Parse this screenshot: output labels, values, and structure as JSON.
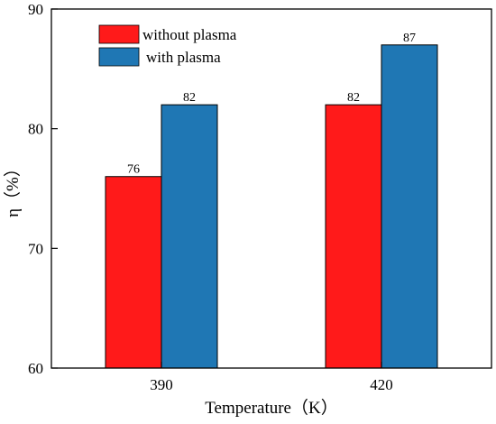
{
  "chart_data": {
    "type": "bar",
    "categories": [
      "390",
      "420"
    ],
    "series": [
      {
        "name": "without plasma",
        "values": [
          76,
          82
        ],
        "color": "#FF1A1A"
      },
      {
        "name": "with plasma",
        "values": [
          82,
          87
        ],
        "color": "#1F77B4"
      }
    ],
    "data_labels": [
      [
        "76",
        "82"
      ],
      [
        "82",
        "87"
      ]
    ],
    "xlabel": "Temperature（K）",
    "ylabel": "η（%）",
    "ylim": [
      60,
      90
    ],
    "yticks": [
      60,
      70,
      80,
      90
    ],
    "legend_position": "top-left",
    "grid": false
  }
}
